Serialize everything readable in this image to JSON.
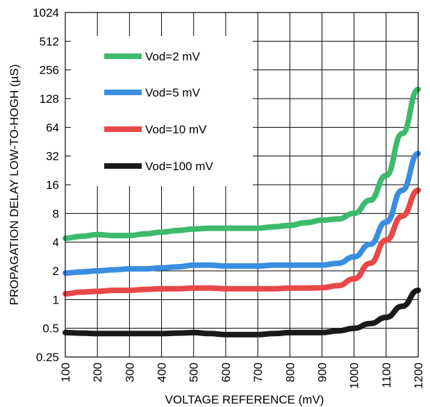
{
  "chart_data": {
    "type": "line",
    "xlabel": "VOLTAGE REFERENCE (mV)",
    "ylabel": "PROPAGATION DELAY LOW-TO-HOGH (µS)",
    "y_scale": "log2",
    "xlim": [
      100,
      1200
    ],
    "ylim": [
      0.25,
      1024
    ],
    "x_ticks": [
      "100",
      "200",
      "300",
      "400",
      "500",
      "600",
      "700",
      "800",
      "900",
      "1000",
      "1100",
      "1200"
    ],
    "y_ticks": [
      "0.25",
      "0.5",
      "1",
      "2",
      "4",
      "8",
      "16",
      "32",
      "64",
      "128",
      "256",
      "512",
      "1024"
    ],
    "grid": true,
    "legend_position": "top-left",
    "x": [
      100,
      150,
      200,
      250,
      300,
      350,
      400,
      450,
      500,
      550,
      600,
      650,
      700,
      750,
      800,
      850,
      900,
      950,
      1000,
      1050,
      1100,
      1150,
      1200
    ],
    "series": [
      {
        "name": "Vod=2 mV",
        "color": "#3dba6c",
        "values": [
          4.4,
          4.6,
          4.8,
          4.7,
          4.7,
          4.9,
          5.1,
          5.3,
          5.5,
          5.6,
          5.6,
          5.6,
          5.6,
          5.8,
          6.0,
          6.4,
          6.8,
          7.0,
          8.0,
          11.0,
          20.0,
          55.0,
          160.0
        ]
      },
      {
        "name": "Vod=5 mV",
        "color": "#3a8ee0",
        "values": [
          1.9,
          1.95,
          2.0,
          2.05,
          2.1,
          2.1,
          2.15,
          2.2,
          2.3,
          2.3,
          2.25,
          2.25,
          2.25,
          2.3,
          2.3,
          2.3,
          2.3,
          2.4,
          2.8,
          3.8,
          6.5,
          14.0,
          34.0
        ]
      },
      {
        "name": "Vod=10 mV",
        "color": "#e84848",
        "values": [
          1.15,
          1.2,
          1.22,
          1.25,
          1.25,
          1.28,
          1.3,
          1.3,
          1.32,
          1.32,
          1.3,
          1.3,
          1.3,
          1.3,
          1.32,
          1.32,
          1.33,
          1.4,
          1.65,
          2.4,
          4.2,
          7.5,
          14.0
        ]
      },
      {
        "name": "Vod=100 mV",
        "color": "#1a1a1a",
        "values": [
          0.45,
          0.445,
          0.44,
          0.44,
          0.44,
          0.44,
          0.44,
          0.445,
          0.45,
          0.44,
          0.43,
          0.43,
          0.43,
          0.44,
          0.45,
          0.45,
          0.45,
          0.47,
          0.5,
          0.56,
          0.65,
          0.85,
          1.25
        ]
      }
    ]
  }
}
